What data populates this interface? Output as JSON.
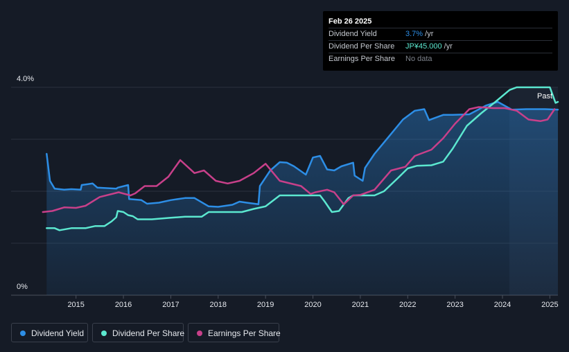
{
  "tooltip": {
    "date": "Feb 26 2025",
    "rows": [
      {
        "label": "Dividend Yield",
        "value": "3.7%",
        "unit": " /yr",
        "color": "#2d8ee6"
      },
      {
        "label": "Dividend Per Share",
        "value": "JP¥45.000",
        "unit": " /yr",
        "color": "#5ce8d0"
      },
      {
        "label": "Earnings Per Share",
        "value": "No data",
        "unit": "",
        "color": "#7d828b"
      }
    ]
  },
  "past_label": "Past",
  "legend": [
    {
      "label": "Dividend Yield",
      "color": "#2d8ee6"
    },
    {
      "label": "Dividend Per Share",
      "color": "#5ce8d0"
    },
    {
      "label": "Earnings Per Share",
      "color": "#c8408a"
    }
  ],
  "chart_data": {
    "type": "line",
    "y_ticks": [
      "4.0%",
      "0%"
    ],
    "ylim": [
      0,
      4.0
    ],
    "xlim": [
      2014.2,
      2025.17
    ],
    "x_ticks": [
      "2015",
      "2016",
      "2017",
      "2018",
      "2019",
      "2020",
      "2021",
      "2022",
      "2023",
      "2024",
      "2025"
    ],
    "series": [
      {
        "name": "Dividend Yield",
        "color": "#2d8ee6",
        "filled": true,
        "points": [
          [
            2014.38,
            2.72
          ],
          [
            2014.45,
            2.2
          ],
          [
            2014.55,
            2.05
          ],
          [
            2014.75,
            2.03
          ],
          [
            2014.9,
            2.04
          ],
          [
            2015.1,
            2.03
          ],
          [
            2015.12,
            2.12
          ],
          [
            2015.35,
            2.15
          ],
          [
            2015.45,
            2.07
          ],
          [
            2015.85,
            2.05
          ],
          [
            2015.88,
            2.07
          ],
          [
            2016.1,
            2.12
          ],
          [
            2016.12,
            1.85
          ],
          [
            2016.38,
            1.83
          ],
          [
            2016.5,
            1.76
          ],
          [
            2016.75,
            1.78
          ],
          [
            2017.0,
            1.83
          ],
          [
            2017.3,
            1.87
          ],
          [
            2017.5,
            1.87
          ],
          [
            2017.8,
            1.71
          ],
          [
            2018.0,
            1.7
          ],
          [
            2018.3,
            1.74
          ],
          [
            2018.45,
            1.8
          ],
          [
            2018.6,
            1.78
          ],
          [
            2018.85,
            1.75
          ],
          [
            2018.88,
            2.1
          ],
          [
            2019.1,
            2.4
          ],
          [
            2019.3,
            2.56
          ],
          [
            2019.45,
            2.55
          ],
          [
            2019.6,
            2.48
          ],
          [
            2019.85,
            2.32
          ],
          [
            2020.0,
            2.65
          ],
          [
            2020.15,
            2.68
          ],
          [
            2020.3,
            2.42
          ],
          [
            2020.45,
            2.4
          ],
          [
            2020.6,
            2.48
          ],
          [
            2020.85,
            2.55
          ],
          [
            2020.88,
            2.3
          ],
          [
            2021.05,
            2.2
          ],
          [
            2021.1,
            2.45
          ],
          [
            2021.3,
            2.72
          ],
          [
            2021.6,
            3.05
          ],
          [
            2021.9,
            3.38
          ],
          [
            2022.15,
            3.55
          ],
          [
            2022.35,
            3.58
          ],
          [
            2022.45,
            3.37
          ],
          [
            2022.75,
            3.47
          ],
          [
            2022.95,
            3.47
          ],
          [
            2023.3,
            3.48
          ],
          [
            2023.65,
            3.65
          ],
          [
            2023.9,
            3.72
          ],
          [
            2024.2,
            3.57
          ],
          [
            2024.5,
            3.58
          ],
          [
            2024.9,
            3.58
          ],
          [
            2025.17,
            3.57
          ]
        ]
      },
      {
        "name": "Dividend Per Share",
        "color": "#5ce8d0",
        "filled": false,
        "points": [
          [
            2014.38,
            1.29
          ],
          [
            2014.55,
            1.29
          ],
          [
            2014.65,
            1.25
          ],
          [
            2014.9,
            1.29
          ],
          [
            2015.2,
            1.29
          ],
          [
            2015.4,
            1.33
          ],
          [
            2015.6,
            1.33
          ],
          [
            2015.75,
            1.42
          ],
          [
            2015.85,
            1.5
          ],
          [
            2015.88,
            1.62
          ],
          [
            2016.0,
            1.6
          ],
          [
            2016.1,
            1.54
          ],
          [
            2016.2,
            1.52
          ],
          [
            2016.3,
            1.46
          ],
          [
            2016.6,
            1.46
          ],
          [
            2017.0,
            1.49
          ],
          [
            2017.3,
            1.51
          ],
          [
            2017.55,
            1.51
          ],
          [
            2017.65,
            1.51
          ],
          [
            2017.8,
            1.6
          ],
          [
            2018.0,
            1.6
          ],
          [
            2018.5,
            1.6
          ],
          [
            2018.75,
            1.66
          ],
          [
            2019.0,
            1.71
          ],
          [
            2019.3,
            1.92
          ],
          [
            2019.9,
            1.92
          ],
          [
            2020.15,
            1.92
          ],
          [
            2020.25,
            1.8
          ],
          [
            2020.4,
            1.6
          ],
          [
            2020.55,
            1.62
          ],
          [
            2020.75,
            1.87
          ],
          [
            2020.85,
            1.92
          ],
          [
            2021.0,
            1.92
          ],
          [
            2021.3,
            1.92
          ],
          [
            2021.5,
            2.0
          ],
          [
            2021.8,
            2.26
          ],
          [
            2022.0,
            2.44
          ],
          [
            2022.2,
            2.49
          ],
          [
            2022.5,
            2.5
          ],
          [
            2022.75,
            2.57
          ],
          [
            2022.95,
            2.82
          ],
          [
            2023.25,
            3.26
          ],
          [
            2023.55,
            3.5
          ],
          [
            2023.85,
            3.72
          ],
          [
            2024.15,
            3.95
          ],
          [
            2024.3,
            4.0
          ],
          [
            2024.85,
            4.0
          ],
          [
            2025.0,
            4.0
          ],
          [
            2025.12,
            3.7
          ],
          [
            2025.17,
            3.72
          ]
        ]
      },
      {
        "name": "Earnings Per Share",
        "color": "#c8408a",
        "filled": false,
        "points": [
          [
            2014.3,
            1.6
          ],
          [
            2014.5,
            1.62
          ],
          [
            2014.75,
            1.69
          ],
          [
            2015.0,
            1.68
          ],
          [
            2015.2,
            1.72
          ],
          [
            2015.5,
            1.89
          ],
          [
            2015.9,
            1.98
          ],
          [
            2016.15,
            1.92
          ],
          [
            2016.25,
            1.96
          ],
          [
            2016.45,
            2.1
          ],
          [
            2016.7,
            2.1
          ],
          [
            2016.95,
            2.28
          ],
          [
            2017.2,
            2.6
          ],
          [
            2017.5,
            2.35
          ],
          [
            2017.7,
            2.4
          ],
          [
            2017.95,
            2.2
          ],
          [
            2018.2,
            2.15
          ],
          [
            2018.45,
            2.2
          ],
          [
            2018.75,
            2.35
          ],
          [
            2019.0,
            2.53
          ],
          [
            2019.3,
            2.2
          ],
          [
            2019.75,
            2.1
          ],
          [
            2019.95,
            1.95
          ],
          [
            2020.05,
            1.98
          ],
          [
            2020.3,
            2.03
          ],
          [
            2020.45,
            1.98
          ],
          [
            2020.65,
            1.75
          ],
          [
            2020.85,
            1.92
          ],
          [
            2021.0,
            1.93
          ],
          [
            2021.3,
            2.03
          ],
          [
            2021.65,
            2.4
          ],
          [
            2021.95,
            2.47
          ],
          [
            2022.15,
            2.68
          ],
          [
            2022.5,
            2.8
          ],
          [
            2022.75,
            3.02
          ],
          [
            2023.0,
            3.3
          ],
          [
            2023.3,
            3.58
          ],
          [
            2023.5,
            3.62
          ],
          [
            2023.8,
            3.6
          ],
          [
            2024.05,
            3.6
          ],
          [
            2024.3,
            3.55
          ],
          [
            2024.55,
            3.38
          ],
          [
            2024.8,
            3.35
          ],
          [
            2024.95,
            3.38
          ],
          [
            2025.1,
            3.58
          ]
        ]
      }
    ]
  }
}
